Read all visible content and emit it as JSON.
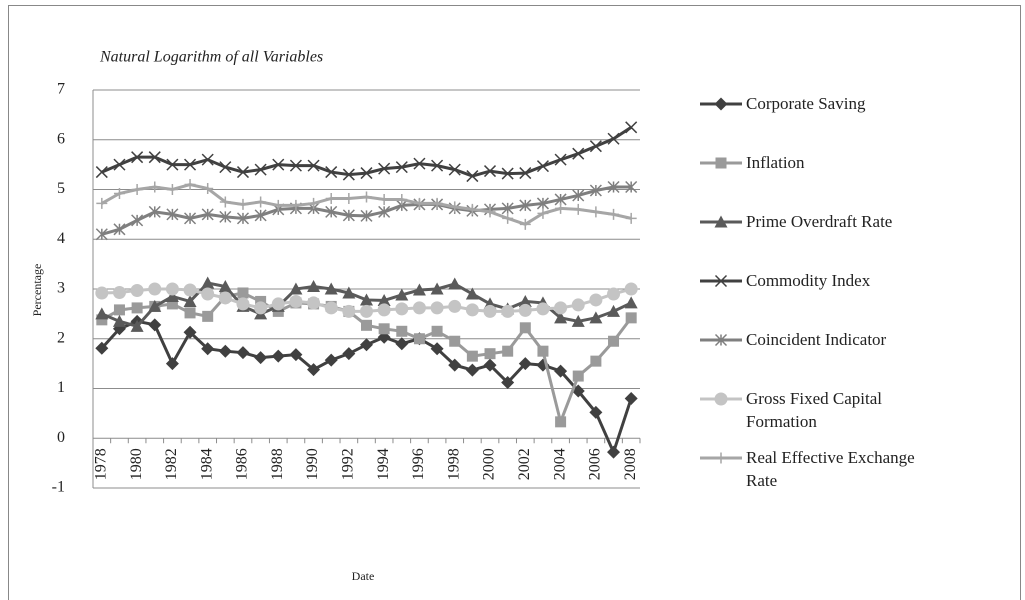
{
  "chart_data": {
    "type": "line",
    "title": "Natural Logarithm of all Variables",
    "y_label": "Percentage",
    "x_label": "Date",
    "categories": [
      "1978",
      null,
      "1980",
      null,
      "1982",
      null,
      "1984",
      null,
      "1986",
      null,
      "1988",
      null,
      "1990",
      null,
      "1992",
      null,
      "1994",
      null,
      "1996",
      null,
      "1998",
      null,
      "2000",
      null,
      "2002",
      null,
      "2004",
      null,
      "2006",
      null,
      "2008"
    ],
    "ylim": [
      -1,
      7
    ],
    "yticks": [
      -1,
      0,
      1,
      2,
      3,
      4,
      5,
      6,
      7
    ],
    "grid": true,
    "legend": "right",
    "series": [
      {
        "name": "Corporate Saving",
        "color": "#404040",
        "marker": "diamond",
        "values": [
          1.81,
          2.2,
          2.35,
          2.28,
          1.5,
          2.13,
          1.8,
          1.75,
          1.72,
          1.62,
          1.65,
          1.68,
          1.38,
          1.57,
          1.7,
          1.88,
          2.03,
          1.9,
          2.0,
          1.8,
          1.47,
          1.37,
          1.47,
          1.12,
          1.5,
          1.47,
          1.35,
          0.95,
          0.52,
          -0.28,
          0.8
        ]
      },
      {
        "name": "Inflation",
        "color": "#9a9a9a",
        "marker": "square",
        "values": [
          2.38,
          2.58,
          2.62,
          2.65,
          2.7,
          2.52,
          2.45,
          2.85,
          2.92,
          2.75,
          2.55,
          2.72,
          2.7,
          2.65,
          2.55,
          2.27,
          2.2,
          2.15,
          2.0,
          2.15,
          1.95,
          1.65,
          1.7,
          1.75,
          2.22,
          1.75,
          0.33,
          1.25,
          1.55,
          1.95,
          2.42
        ]
      },
      {
        "name": "Prime Overdraft Rate",
        "color": "#5a5a5a",
        "marker": "triangle",
        "values": [
          2.5,
          2.35,
          2.25,
          2.65,
          2.85,
          2.75,
          3.12,
          3.05,
          2.65,
          2.5,
          2.65,
          3.0,
          3.05,
          3.0,
          2.92,
          2.78,
          2.77,
          2.88,
          2.98,
          3.0,
          3.1,
          2.9,
          2.7,
          2.6,
          2.75,
          2.72,
          2.42,
          2.35,
          2.42,
          2.55,
          2.72
        ]
      },
      {
        "name": "Commodity Index",
        "color": "#404040",
        "marker": "x",
        "values": [
          5.35,
          5.5,
          5.65,
          5.65,
          5.5,
          5.5,
          5.6,
          5.45,
          5.35,
          5.4,
          5.5,
          5.48,
          5.48,
          5.35,
          5.3,
          5.33,
          5.42,
          5.45,
          5.52,
          5.48,
          5.4,
          5.27,
          5.37,
          5.32,
          5.33,
          5.47,
          5.6,
          5.72,
          5.87,
          6.02,
          6.25
        ]
      },
      {
        "name": "Coincident Indicator",
        "color": "#7f7f7f",
        "marker": "asterisk",
        "values": [
          4.1,
          4.2,
          4.38,
          4.55,
          4.5,
          4.42,
          4.5,
          4.45,
          4.42,
          4.48,
          4.6,
          4.62,
          4.62,
          4.55,
          4.48,
          4.47,
          4.55,
          4.68,
          4.7,
          4.7,
          4.62,
          4.57,
          4.6,
          4.62,
          4.68,
          4.72,
          4.8,
          4.88,
          4.98,
          5.05,
          5.05
        ]
      },
      {
        "name": "Gross Fixed Capital Formation",
        "color": "#c4c4c4",
        "marker": "circle",
        "values": [
          2.92,
          2.93,
          2.97,
          3.0,
          3.0,
          2.98,
          2.9,
          2.82,
          2.7,
          2.62,
          2.7,
          2.75,
          2.72,
          2.62,
          2.55,
          2.55,
          2.58,
          2.6,
          2.62,
          2.62,
          2.65,
          2.58,
          2.55,
          2.55,
          2.57,
          2.6,
          2.62,
          2.68,
          2.78,
          2.9,
          3.0
        ]
      },
      {
        "name": "Real Effective Exchange Rate",
        "color": "#a6a6a6",
        "marker": "plus",
        "values": [
          4.72,
          4.92,
          5.0,
          5.05,
          5.0,
          5.1,
          5.02,
          4.75,
          4.7,
          4.75,
          4.68,
          4.68,
          4.72,
          4.82,
          4.82,
          4.85,
          4.8,
          4.8,
          4.72,
          4.72,
          4.65,
          4.6,
          4.55,
          4.42,
          4.3,
          4.52,
          4.62,
          4.6,
          4.55,
          4.5,
          4.42
        ]
      }
    ]
  }
}
